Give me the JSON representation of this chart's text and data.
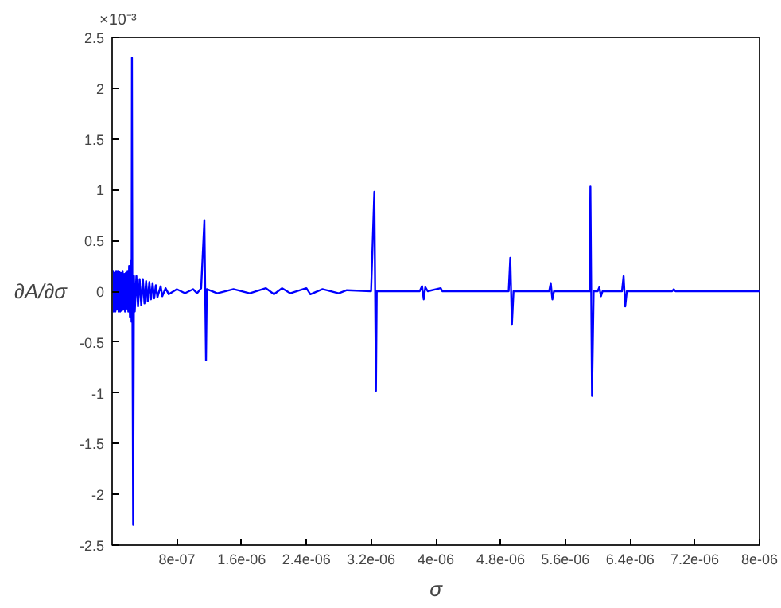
{
  "chart_data": {
    "type": "line",
    "xlabel": "σ",
    "ylabel": "∂A/∂σ",
    "annotations": [
      "×10⁻³"
    ],
    "grid": false,
    "marker": "none",
    "line_style": "solid",
    "xlim": [
      0,
      8e-06
    ],
    "ylim": [
      -2.5,
      2.5
    ],
    "xticks": [
      {
        "value": 8e-07,
        "label": "8e-07"
      },
      {
        "value": 1.6e-06,
        "label": "1.6e-06"
      },
      {
        "value": 2.4e-06,
        "label": "2.4e-06"
      },
      {
        "value": 3.2e-06,
        "label": "3.2e-06"
      },
      {
        "value": 4e-06,
        "label": "4e-06"
      },
      {
        "value": 4.8e-06,
        "label": "4.8e-06"
      },
      {
        "value": 5.6e-06,
        "label": "5.6e-06"
      },
      {
        "value": 6.4e-06,
        "label": "6.4e-06"
      },
      {
        "value": 7.2e-06,
        "label": "7.2e-06"
      },
      {
        "value": 8e-06,
        "label": "8e-06"
      }
    ],
    "yticks": [
      -2.5,
      -2,
      -1.5,
      -1,
      -0.5,
      0,
      0.5,
      1,
      1.5,
      2,
      2.5
    ],
    "series": [
      {
        "color": "#0000ff",
        "x": [
          0,
          1e-08,
          2e-08,
          3e-08,
          4e-08,
          5e-08,
          6e-08,
          7e-08,
          8e-08,
          9e-08,
          1e-07,
          1.1e-07,
          1.2e-07,
          1.3e-07,
          1.4e-07,
          1.5e-07,
          1.6e-07,
          1.7e-07,
          1.8e-07,
          1.9e-07,
          2e-07,
          2.1e-07,
          2.2e-07,
          2.3e-07,
          2.4e-07,
          2.45e-07,
          2.5e-07,
          2.6e-07,
          2.7e-07,
          2.8e-07,
          3e-07,
          3.2e-07,
          3.4e-07,
          3.6e-07,
          3.8e-07,
          4e-07,
          4.2e-07,
          4.4e-07,
          4.6e-07,
          4.8e-07,
          5e-07,
          5.2e-07,
          5.4e-07,
          5.6e-07,
          6e-07,
          6.2e-07,
          6.6e-07,
          7e-07,
          8e-07,
          9e-07,
          1e-06,
          1.05e-06,
          1.1e-06,
          1.14e-06,
          1.15e-06,
          1.16e-06,
          1.17e-06,
          1.3e-06,
          1.5e-06,
          1.7e-06,
          1.9e-06,
          2e-06,
          2.1e-06,
          2.2e-06,
          2.4e-06,
          2.45e-06,
          2.6e-06,
          2.8e-06,
          2.9e-06,
          3.2e-06,
          3.24e-06,
          3.25e-06,
          3.26e-06,
          3.27e-06,
          3.8e-06,
          3.83e-06,
          3.85e-06,
          3.87e-06,
          3.9e-06,
          4.06e-06,
          4.08e-06,
          4.9e-06,
          4.92e-06,
          4.93e-06,
          4.94e-06,
          4.96e-06,
          5.4e-06,
          5.42e-06,
          5.43e-06,
          5.44e-06,
          5.46e-06,
          5.9e-06,
          5.91e-06,
          5.92e-06,
          5.93e-06,
          5.95e-06,
          6e-06,
          6.02e-06,
          6.04e-06,
          6.06e-06,
          6.3e-06,
          6.32e-06,
          6.33e-06,
          6.34e-06,
          6.36e-06,
          6.92e-06,
          6.94e-06,
          6.96e-06,
          8e-06
        ],
        "values": [
          0,
          0.2,
          -0.2,
          0.18,
          -0.2,
          0.2,
          -0.18,
          0.2,
          -0.2,
          0.19,
          -0.2,
          0.18,
          -0.19,
          0.2,
          -0.18,
          0.17,
          -0.2,
          0.18,
          -0.17,
          0.2,
          -0.2,
          0.25,
          -0.25,
          0.3,
          -0.3,
          2.3,
          0,
          -2.3,
          0.15,
          -0.2,
          0.15,
          -0.15,
          0.12,
          -0.14,
          0.12,
          -0.12,
          0.1,
          -0.1,
          0.09,
          -0.08,
          0.08,
          -0.07,
          0.06,
          -0.06,
          0.05,
          -0.05,
          0.03,
          -0.03,
          0.02,
          -0.02,
          0.02,
          -0.02,
          0.03,
          0.7,
          0,
          -0.68,
          0.02,
          -0.02,
          0.02,
          -0.02,
          0.03,
          -0.03,
          0.03,
          -0.02,
          0.03,
          -0.03,
          0.02,
          -0.02,
          0.01,
          0,
          0.98,
          0,
          -0.98,
          0,
          0,
          0.05,
          -0.08,
          0.04,
          0,
          0.03,
          0,
          0,
          0.33,
          0,
          -0.33,
          0,
          0,
          0.08,
          0,
          -0.08,
          0,
          0,
          1.03,
          0,
          -1.03,
          0,
          0,
          0.04,
          -0.05,
          0,
          0,
          0.15,
          0,
          -0.15,
          0,
          0,
          0.02,
          0,
          0
        ]
      }
    ]
  }
}
